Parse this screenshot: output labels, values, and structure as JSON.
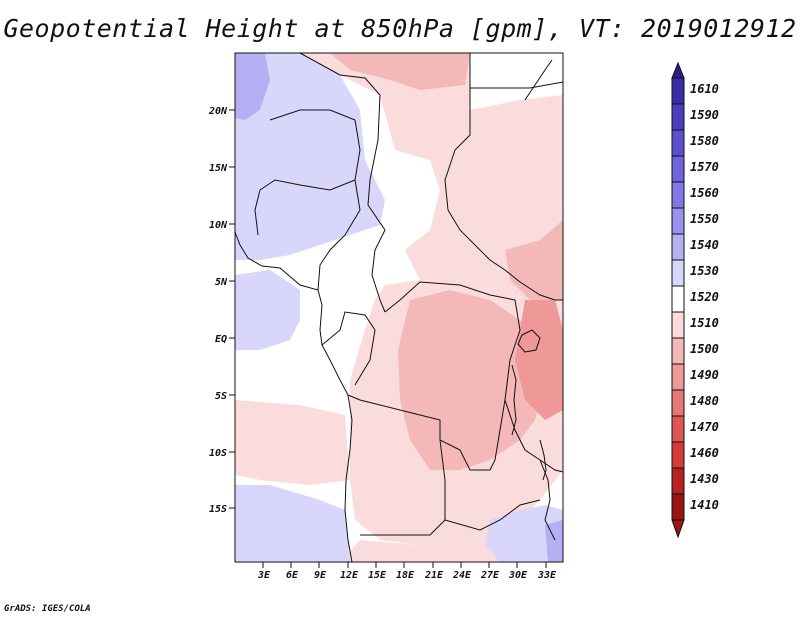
{
  "title": "Geopotential Height at 850hPa [gpm], VT: 2019012912",
  "credit": "GrADS: IGES/COLA",
  "map": {
    "lat_labels": [
      "20N",
      "15N",
      "10N",
      "5N",
      "EQ",
      "5S",
      "10S",
      "15S"
    ],
    "lon_labels": [
      "3E",
      "6E",
      "9E",
      "12E",
      "15E",
      "18E",
      "21E",
      "24E",
      "27E",
      "30E",
      "33E"
    ]
  },
  "colorbar": {
    "levels": [
      "1610",
      "1590",
      "1580",
      "1570",
      "1560",
      "1550",
      "1540",
      "1530",
      "1520",
      "1510",
      "1500",
      "1490",
      "1480",
      "1470",
      "1460",
      "1430",
      "1410"
    ],
    "colors": [
      "#2c1e8a",
      "#3a2ba8",
      "#4b3cc0",
      "#5d4fd2",
      "#6f63e0",
      "#8478e8",
      "#9b91ef",
      "#b6aff4",
      "#d8d6fa",
      "#ffffff",
      "#fbdcdc",
      "#f5b8b8",
      "#ee9898",
      "#e57777",
      "#dc5656",
      "#d43a3a",
      "#b82222",
      "#9c1414"
    ]
  }
}
